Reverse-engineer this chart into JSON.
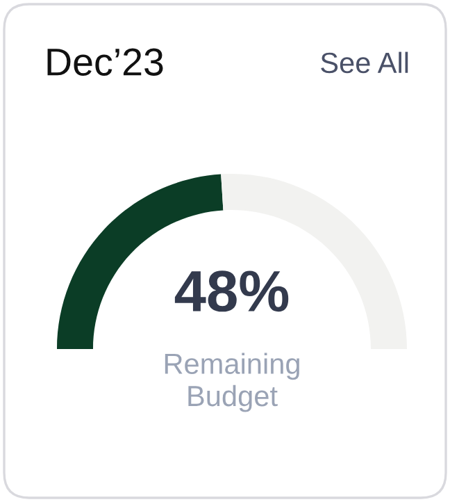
{
  "chart_data": {
    "type": "donut",
    "title": "Dec’23",
    "annotations": [
      "See All",
      "Remaining Budget"
    ],
    "categories": [
      null,
      null
    ],
    "values": [
      48,
      52
    ],
    "colors": [
      "#0b3d26",
      "#f2f2f0"
    ],
    "value_labels": [
      "48%",
      null
    ]
  }
}
